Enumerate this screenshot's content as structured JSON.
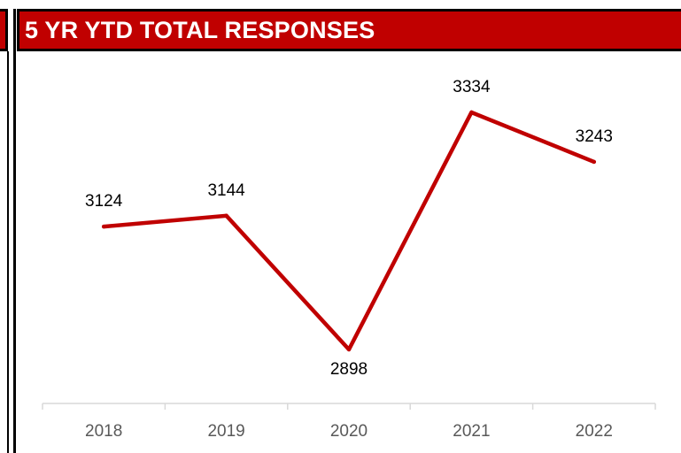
{
  "header": {
    "title": "5 YR YTD TOTAL RESPONSES"
  },
  "colors": {
    "header_bg": "#c00000",
    "line": "#c00000",
    "axis": "#d9d9d9"
  },
  "chart_data": {
    "type": "line",
    "title": "5 YR YTD TOTAL RESPONSES",
    "categories": [
      "2018",
      "2019",
      "2020",
      "2021",
      "2022"
    ],
    "values": [
      3124,
      3144,
      2898,
      3334,
      3243
    ],
    "data_labels": [
      "3124",
      "3144",
      "2898",
      "3334",
      "3243"
    ],
    "xlabel": "",
    "ylabel": "",
    "ylim": [
      2880,
      3360
    ],
    "grid": false,
    "legend": "none"
  }
}
